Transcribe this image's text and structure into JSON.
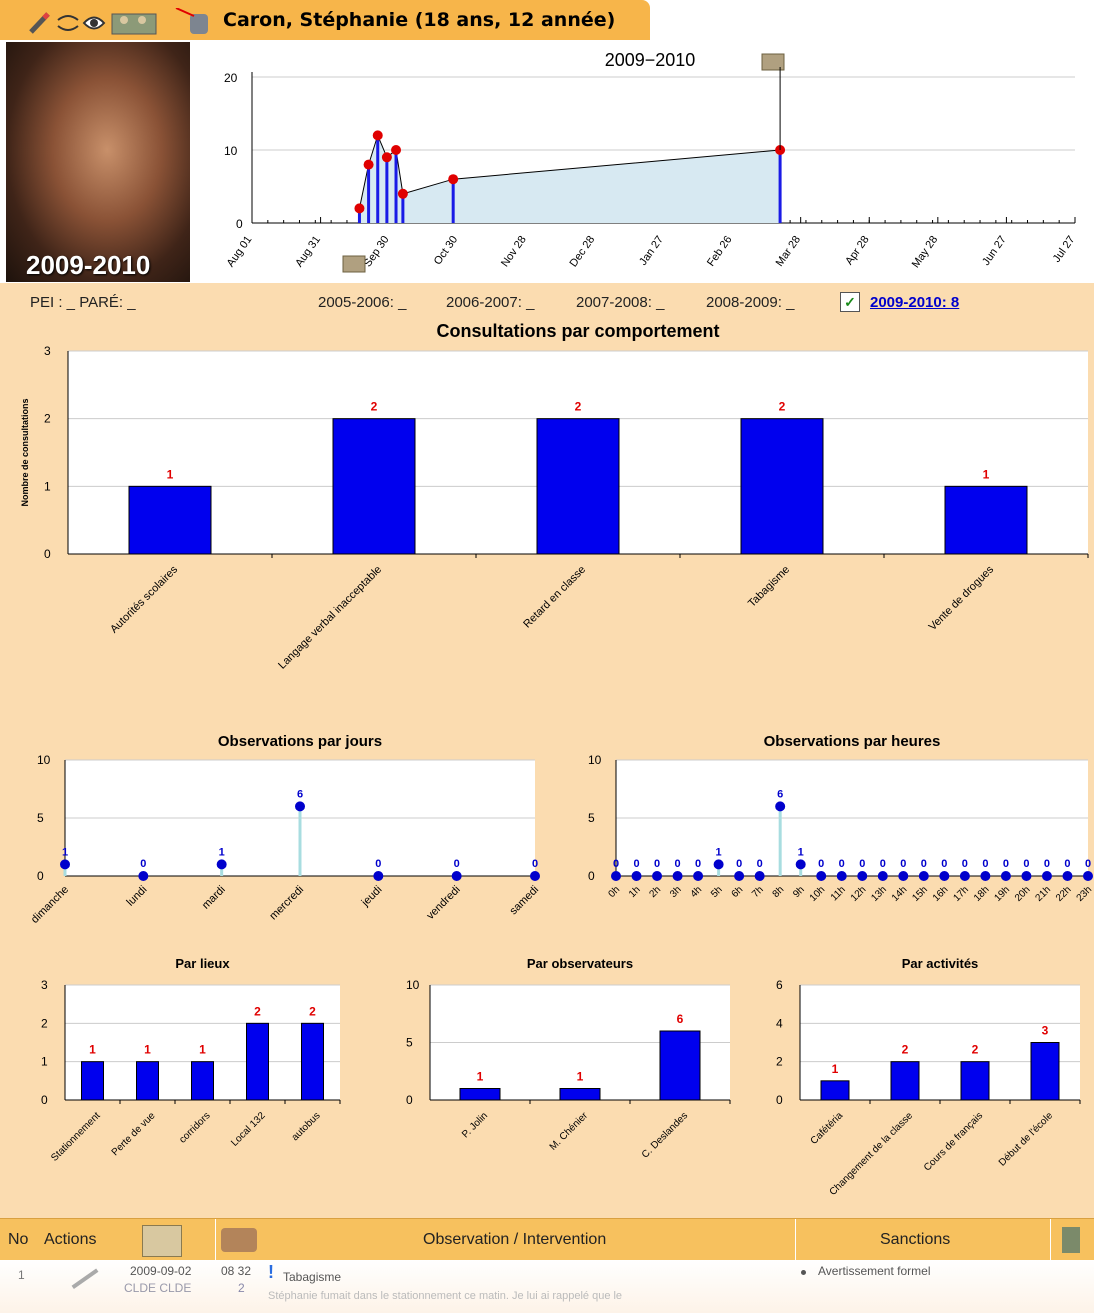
{
  "header": {
    "student_name": "Caron, Stéphanie (18 ans, 12 année)",
    "photo_year": "2009-2010",
    "icons": [
      "pencil-icon",
      "eye-closed-icon",
      "eye-icon",
      "people-icon",
      "hand-icon"
    ]
  },
  "timeline": {
    "title": "2009−2010",
    "y_ticks": [
      "20",
      "10",
      "0"
    ],
    "x_ticks": [
      "Aug 01",
      "Aug 31",
      "Sep 30",
      "Oct 30",
      "Nov 28",
      "Dec 28",
      "Jan 27",
      "Feb 26",
      "Mar 28",
      "Apr 28",
      "May 28",
      "Jun 27",
      "Jul 27"
    ]
  },
  "legend": {
    "pei": "PEI : _ PARÉ: _",
    "years": [
      "2005-2006: _",
      "2006-2007: _",
      "2007-2008: _",
      "2008-2009: _"
    ],
    "current": "2009-2010: 8"
  },
  "table": {
    "headers": [
      "No",
      "Actions",
      "Observation / Intervention",
      "Sanctions"
    ],
    "row": {
      "no": "1",
      "date": "2009-09-02",
      "time": "08 32",
      "author": "CLDE CLDE",
      "count": "2",
      "title": "Tabagisme",
      "text": "Stéphanie fumait dans le stationnement ce matin. Je lui ai rappelé que le",
      "sanction": "Avertissement formel"
    }
  },
  "chart_data": [
    {
      "type": "area",
      "title": "2009−2010",
      "x": [
        "2009-09-17",
        "2009-09-21",
        "2009-09-25",
        "2009-09-29",
        "2009-10-03",
        "2009-10-06",
        "2009-10-28",
        "2010-03-20"
      ],
      "y": [
        2,
        8,
        12,
        9,
        10,
        4,
        6,
        10
      ],
      "ylim": [
        0,
        20
      ]
    },
    {
      "type": "bar",
      "title": "Consultations par comportement",
      "ylabel": "Nombre de consultations",
      "categories": [
        "Autorités scolaires",
        "Langage verbal inacceptable",
        "Retard en classe",
        "Tabagisme",
        "Vente de drogues"
      ],
      "values": [
        1,
        2,
        2,
        2,
        1
      ],
      "ylim": [
        0,
        3
      ]
    },
    {
      "type": "line",
      "title": "Observations par jours",
      "categories": [
        "dimanche",
        "lundi",
        "mardi",
        "mercredi",
        "jeudi",
        "vendredi",
        "samedi"
      ],
      "values": [
        1,
        0,
        1,
        6,
        0,
        0,
        0
      ],
      "ylim": [
        0,
        10
      ]
    },
    {
      "type": "line",
      "title": "Observations par heures",
      "categories": [
        "0h",
        "1h",
        "2h",
        "3h",
        "4h",
        "5h",
        "6h",
        "7h",
        "8h",
        "9h",
        "10h",
        "11h",
        "12h",
        "13h",
        "14h",
        "15h",
        "16h",
        "17h",
        "18h",
        "19h",
        "20h",
        "21h",
        "22h",
        "23h"
      ],
      "values": [
        0,
        0,
        0,
        0,
        0,
        1,
        0,
        0,
        6,
        1,
        0,
        0,
        0,
        0,
        0,
        0,
        0,
        0,
        0,
        0,
        0,
        0,
        0,
        0
      ],
      "ylim": [
        0,
        10
      ]
    },
    {
      "type": "bar",
      "title": "Par lieux",
      "categories": [
        "Stationnement",
        "Perte de vue",
        "corridors",
        "Local 132",
        "autobus"
      ],
      "values": [
        1,
        1,
        1,
        2,
        2
      ],
      "ylim": [
        0,
        3
      ]
    },
    {
      "type": "bar",
      "title": "Par observateurs",
      "categories": [
        "P. Jolin",
        "M. Chénier",
        "C. Deslandes"
      ],
      "values": [
        1,
        1,
        6
      ],
      "ylim": [
        0,
        10
      ]
    },
    {
      "type": "bar",
      "title": "Par activités",
      "categories": [
        "Cafétéria",
        "Changement de la classe",
        "Cours de français",
        "Début de l'école"
      ],
      "values": [
        1,
        2,
        2,
        3
      ],
      "ylim": [
        0,
        6
      ]
    }
  ]
}
